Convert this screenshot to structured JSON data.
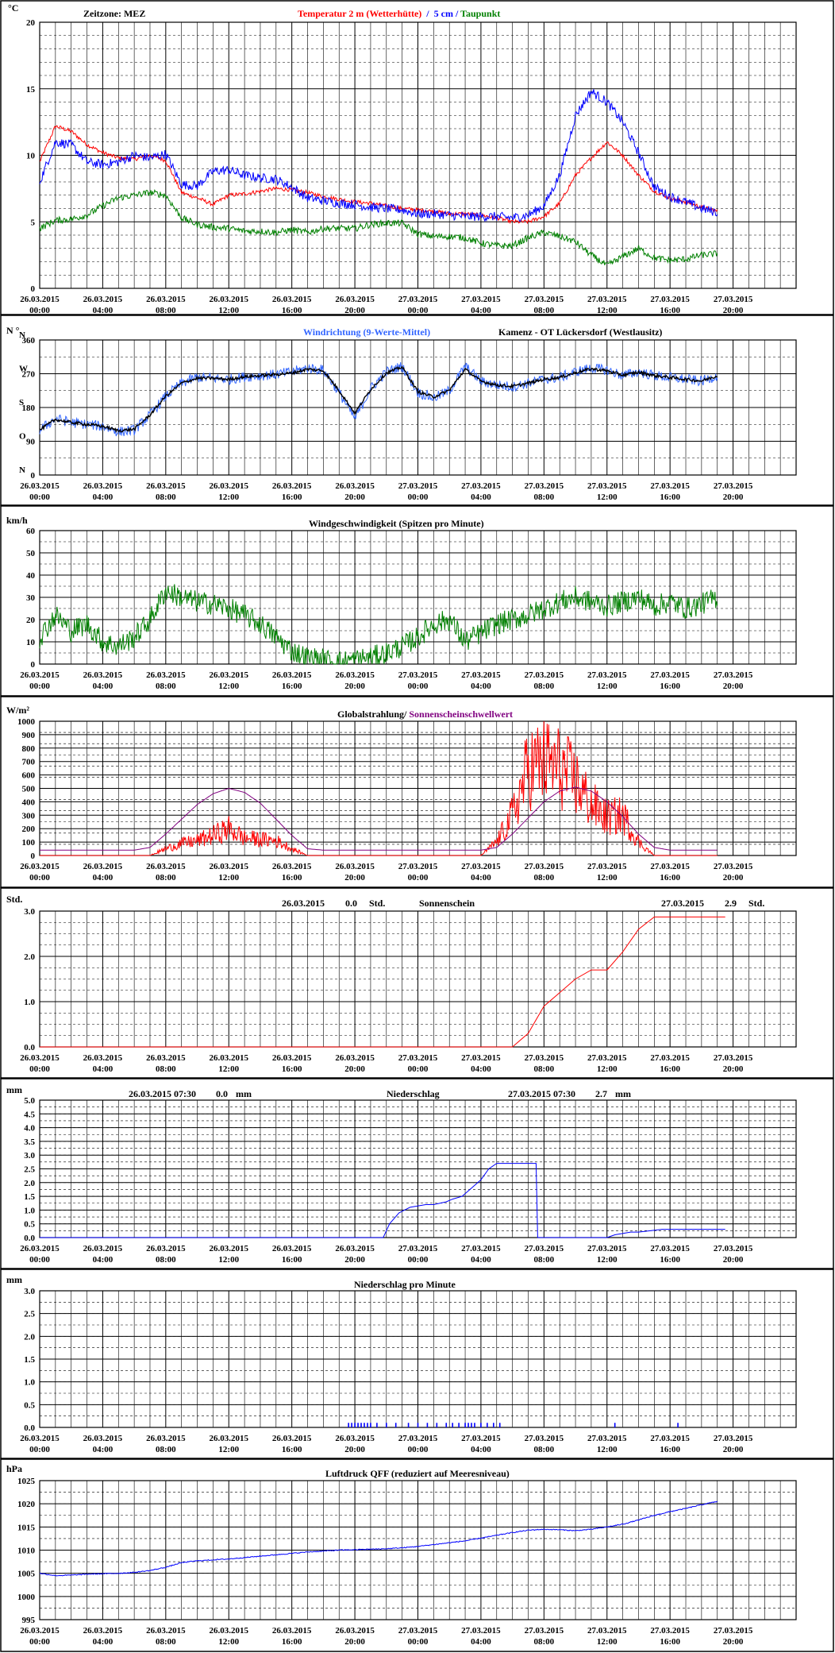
{
  "x_labels": [
    [
      "26.03.2015",
      "00:00"
    ],
    [
      "26.03.2015",
      "04:00"
    ],
    [
      "26.03.2015",
      "08:00"
    ],
    [
      "26.03.2015",
      "12:00"
    ],
    [
      "26.03.2015",
      "16:00"
    ],
    [
      "26.03.2015",
      "20:00"
    ],
    [
      "27.03.2015",
      "00:00"
    ],
    [
      "27.03.2015",
      "04:00"
    ],
    [
      "27.03.2015",
      "08:00"
    ],
    [
      "27.03.2015",
      "12:00"
    ],
    [
      "27.03.2015",
      "16:00"
    ],
    [
      "27.03.2015",
      "20:00"
    ]
  ],
  "colors": {
    "red": "#ff0000",
    "blue": "#0000ff",
    "lightblue": "#3366ff",
    "green": "#008000",
    "purple": "#800080",
    "black": "#000000",
    "navy": "#000080"
  },
  "chart_data": [
    {
      "id": "temperature",
      "type": "line",
      "unit": "°C",
      "timezone_label": "Zeitzone: MEZ",
      "title_parts": [
        {
          "text": "Temperatur 2 m (Wetterhütte)",
          "color": "#ff0000"
        },
        {
          "text": "  /  ",
          "color": "#0000ff"
        },
        {
          "text": "5 cm",
          "color": "#0000ff"
        },
        {
          "text": " / ",
          "color": "#0000ff"
        },
        {
          "text": "Taupunkt",
          "color": "#008000"
        }
      ],
      "ylim": [
        0,
        20
      ],
      "yticks": [
        0,
        5,
        10,
        15,
        20
      ],
      "ytick_labels": [
        "0",
        "5",
        "10",
        "15",
        "20"
      ],
      "x_hours": [
        0,
        1,
        2,
        3,
        4,
        5,
        6,
        7,
        8,
        9,
        10,
        11,
        12,
        13,
        14,
        15,
        16,
        17,
        18,
        19,
        20,
        21,
        22,
        23,
        24,
        25,
        26,
        27,
        28,
        29,
        30,
        31,
        32,
        33,
        34,
        35,
        36,
        37,
        38,
        39,
        40,
        41,
        42,
        43
      ],
      "series": [
        {
          "name": "Temperatur 2 m (Wetterhütte)",
          "color": "#ff0000",
          "noise": 0.15,
          "values": [
            9.5,
            12.2,
            11.8,
            10.8,
            10.2,
            9.8,
            9.7,
            10,
            9.6,
            7.2,
            6.8,
            6.3,
            7.0,
            7.1,
            7.3,
            7.5,
            7.4,
            7.2,
            6.9,
            6.7,
            6.5,
            6.4,
            6.2,
            6.0,
            5.9,
            5.8,
            5.6,
            5.6,
            5.5,
            5.3,
            5.0,
            5.0,
            5.4,
            6.4,
            8.5,
            9.8,
            11.0,
            10.0,
            8.5,
            7.3,
            6.8,
            6.5,
            6.1,
            5.8
          ]
        },
        {
          "name": "5 cm",
          "color": "#0000ff",
          "noise": 0.35,
          "values": [
            8.0,
            11.0,
            10.8,
            9.5,
            9.3,
            9.5,
            10,
            9.8,
            10.1,
            7.8,
            7.7,
            8.8,
            8.9,
            8.5,
            8.3,
            8.2,
            7.6,
            6.8,
            6.6,
            6.4,
            6.3,
            6.1,
            6.0,
            5.9,
            5.6,
            5.6,
            5.5,
            5.4,
            5.4,
            5.4,
            5.3,
            5.5,
            6.2,
            8.5,
            13.0,
            14.8,
            14.0,
            12.5,
            10.2,
            7.6,
            6.9,
            6.5,
            6.0,
            5.7
          ]
        },
        {
          "name": "Taupunkt",
          "color": "#008000",
          "noise": 0.25,
          "values": [
            4.5,
            5.1,
            5.2,
            5.5,
            6.2,
            6.8,
            7.0,
            7.2,
            7.0,
            5.3,
            4.8,
            4.6,
            4.5,
            4.3,
            4.3,
            4.2,
            4.4,
            4.2,
            4.5,
            4.5,
            4.5,
            4.8,
            4.9,
            4.9,
            4.1,
            3.9,
            3.9,
            3.8,
            3.4,
            3.2,
            3.2,
            3.8,
            4.2,
            3.9,
            3.5,
            2.5,
            1.7,
            2.4,
            3.0,
            2.3,
            2.1,
            2.2,
            2.5,
            2.6
          ]
        }
      ]
    },
    {
      "id": "wind_direction",
      "type": "line",
      "unit": "N",
      "unit_suffix": "°",
      "title": "Windrichtung (9-Werte-Mittel)",
      "title_color": "#3366ff",
      "station": "Kamenz - OT Lückersdorf (Westlausitz)",
      "ylim": [
        0,
        360
      ],
      "yticks": [
        0,
        90,
        180,
        270,
        360
      ],
      "ytick_labels": [
        "0",
        "90",
        "180",
        "270",
        "360"
      ],
      "compass_labels": [
        {
          "text": "N",
          "value": 360
        },
        {
          "text": "W",
          "value": 270
        },
        {
          "text": "S",
          "value": 180
        },
        {
          "text": "O",
          "value": 90
        },
        {
          "text": "N",
          "value": 0
        }
      ],
      "x_hours": [
        0,
        1,
        2,
        3,
        4,
        5,
        6,
        7,
        8,
        9,
        10,
        11,
        12,
        13,
        14,
        15,
        16,
        17,
        18,
        19,
        20,
        21,
        22,
        23,
        24,
        25,
        26,
        27,
        28,
        29,
        30,
        31,
        32,
        33,
        34,
        35,
        36,
        37,
        38,
        39,
        40,
        41,
        42,
        43
      ],
      "series": [
        {
          "name": "Windrichtung",
          "color": "#3366ff",
          "noise": 14,
          "values": [
            120,
            150,
            140,
            135,
            130,
            115,
            120,
            160,
            210,
            245,
            260,
            258,
            255,
            262,
            265,
            268,
            275,
            285,
            280,
            220,
            150,
            230,
            275,
            290,
            220,
            205,
            225,
            290,
            250,
            240,
            235,
            245,
            255,
            260,
            275,
            285,
            280,
            265,
            275,
            265,
            260,
            255,
            250,
            265
          ]
        },
        {
          "name": "9-Werte-Mittel",
          "color": "#000000",
          "noise": 4,
          "values": [
            120,
            148,
            140,
            135,
            130,
            118,
            122,
            160,
            210,
            245,
            258,
            258,
            255,
            262,
            265,
            268,
            272,
            282,
            278,
            225,
            165,
            228,
            272,
            288,
            222,
            208,
            226,
            282,
            250,
            240,
            236,
            245,
            255,
            260,
            273,
            283,
            278,
            266,
            274,
            265,
            260,
            255,
            251,
            264
          ]
        }
      ]
    },
    {
      "id": "wind_speed",
      "type": "line",
      "unit": "km/h",
      "title": "Windgeschwindigkeit (Spitzen pro Minute)",
      "ylim": [
        0,
        60
      ],
      "yticks": [
        0,
        10,
        20,
        30,
        40,
        50,
        60
      ],
      "ytick_labels": [
        "0",
        "10",
        "20",
        "30",
        "40",
        "50",
        "60"
      ],
      "x_hours": [
        0,
        1,
        2,
        3,
        4,
        5,
        6,
        7,
        8,
        9,
        10,
        11,
        12,
        13,
        14,
        15,
        16,
        17,
        18,
        19,
        20,
        21,
        22,
        23,
        24,
        25,
        26,
        27,
        28,
        29,
        30,
        31,
        32,
        33,
        34,
        35,
        36,
        37,
        38,
        39,
        40,
        41,
        42,
        43
      ],
      "series": [
        {
          "name": "Windgeschwindigkeit",
          "color": "#008000",
          "noise": 5,
          "values": [
            12,
            22,
            15,
            18,
            10,
            8,
            12,
            20,
            33,
            30,
            28,
            27,
            25,
            22,
            18,
            12,
            6,
            3,
            2,
            1,
            2,
            3,
            5,
            8,
            12,
            18,
            20,
            10,
            14,
            18,
            20,
            22,
            25,
            28,
            30,
            28,
            26,
            28,
            30,
            26,
            28,
            25,
            27,
            30
          ]
        }
      ]
    },
    {
      "id": "global_radiation",
      "type": "line",
      "unit": "W/m²",
      "title_parts": [
        {
          "text": "Globalstrahlung/ ",
          "color": "#000000"
        },
        {
          "text": "Sonnenscheinschwellwert",
          "color": "#800080"
        }
      ],
      "ylim": [
        0,
        1000
      ],
      "yticks": [
        0,
        100,
        200,
        300,
        400,
        500,
        600,
        700,
        800,
        900,
        1000
      ],
      "ytick_labels": [
        "0",
        "100",
        "200",
        "300",
        "400",
        "500",
        "600",
        "700",
        "800",
        "900",
        "1000"
      ],
      "x_hours": [
        0,
        1,
        2,
        3,
        4,
        5,
        6,
        7,
        8,
        9,
        10,
        11,
        12,
        13,
        14,
        15,
        16,
        17,
        18,
        19,
        20,
        21,
        22,
        23,
        24,
        25,
        26,
        27,
        28,
        29,
        30,
        31,
        32,
        33,
        34,
        35,
        36,
        37,
        38,
        39,
        40,
        41,
        42,
        43
      ],
      "series": [
        {
          "name": "Globalstrahlung",
          "color": "#ff0000",
          "noise": 0.5,
          "values": [
            0,
            0,
            0,
            0,
            0,
            0,
            0,
            0,
            50,
            90,
            110,
            150,
            200,
            130,
            120,
            110,
            50,
            0,
            0,
            0,
            0,
            0,
            0,
            0,
            0,
            0,
            0,
            0,
            0,
            100,
            300,
            650,
            700,
            650,
            550,
            380,
            280,
            300,
            100,
            0,
            0,
            0,
            0,
            0
          ]
        },
        {
          "name": "Sonnenscheinschwellwert",
          "color": "#800080",
          "noise": 0,
          "values": [
            40,
            40,
            40,
            40,
            40,
            40,
            40,
            60,
            160,
            270,
            380,
            460,
            500,
            470,
            390,
            270,
            150,
            50,
            40,
            40,
            40,
            40,
            40,
            40,
            40,
            40,
            40,
            40,
            40,
            60,
            160,
            280,
            400,
            480,
            510,
            480,
            400,
            290,
            160,
            60,
            40,
            40,
            40,
            40
          ]
        }
      ]
    },
    {
      "id": "sunshine",
      "type": "line",
      "unit": "Std.",
      "title": "Sonnenschein",
      "day_totals": [
        {
          "date": "26.03.2015",
          "value": "0.0",
          "unit": "Std."
        },
        {
          "date": "27.03.2015",
          "value": "2.9",
          "unit": "Std."
        }
      ],
      "ylim": [
        0,
        3
      ],
      "yticks": [
        0,
        1,
        2,
        3
      ],
      "ytick_labels": [
        "0.0",
        "1.0",
        "2.0",
        "3.0"
      ],
      "x_hours": [
        0,
        24,
        30,
        31,
        32,
        33,
        34,
        35,
        36,
        37,
        38,
        39,
        43.5
      ],
      "series": [
        {
          "name": "Sonnenschein",
          "color": "#ff0000",
          "noise": 0,
          "values": [
            0,
            0,
            0,
            0.3,
            0.9,
            1.2,
            1.5,
            1.7,
            1.7,
            2.1,
            2.6,
            2.87,
            2.87
          ]
        }
      ]
    },
    {
      "id": "precipitation",
      "type": "line",
      "unit": "mm",
      "title": "Niederschlag",
      "day_totals": [
        {
          "date": "26.03.2015 07:30",
          "value": "0.0",
          "unit": "mm"
        },
        {
          "date": "27.03.2015 07:30",
          "value": "2.7",
          "unit": "mm"
        }
      ],
      "ylim": [
        0,
        5
      ],
      "yticks": [
        0,
        0.5,
        1,
        1.5,
        2,
        2.5,
        3,
        3.5,
        4,
        4.5,
        5
      ],
      "ytick_labels": [
        "0.0",
        "0.5",
        "1.0",
        "1.5",
        "2.0",
        "2.5",
        "3.0",
        "3.5",
        "4.0",
        "4.5",
        "5.0"
      ],
      "x_hours": [
        0,
        20,
        21.8,
        22.2,
        22.8,
        23.5,
        24.5,
        25,
        25.8,
        26.2,
        26.8,
        27.2,
        27.6,
        28,
        28.5,
        29,
        29.5,
        31.5,
        31.6,
        36,
        36.5,
        37.5,
        38,
        39.5,
        43.5
      ],
      "series": [
        {
          "name": "Niederschlag",
          "color": "#0000ff",
          "noise": 0,
          "values": [
            0,
            0,
            0,
            0.5,
            0.9,
            1.1,
            1.2,
            1.2,
            1.3,
            1.4,
            1.5,
            1.7,
            1.9,
            2.1,
            2.5,
            2.7,
            2.7,
            2.7,
            0,
            0,
            0.1,
            0.2,
            0.2,
            0.3,
            0.3
          ]
        }
      ]
    },
    {
      "id": "precipitation_per_minute",
      "type": "bar",
      "unit": "mm",
      "title": "Niederschlag pro Minute",
      "ylim": [
        0,
        3
      ],
      "yticks": [
        0,
        0.5,
        1,
        1.5,
        2,
        2.5,
        3
      ],
      "ytick_labels": [
        "0.0",
        "0.5",
        "1.0",
        "1.5",
        "2.0",
        "2.5",
        "3.0"
      ],
      "bar_color": "#0000ff",
      "x_hours": [
        19.6,
        19.8,
        20.0,
        20.2,
        20.4,
        20.6,
        20.8,
        21.0,
        21.4,
        22.0,
        22.6,
        23.4,
        24.0,
        24.6,
        25.2,
        25.8,
        26.2,
        26.6,
        27.0,
        27.2,
        27.4,
        27.6,
        28.0,
        28.4,
        28.8,
        29.2,
        36.5,
        40.5
      ],
      "values": [
        0.1,
        0.1,
        0.1,
        0.1,
        0.1,
        0.1,
        0.1,
        0.1,
        0.1,
        0.1,
        0.1,
        0.1,
        0.1,
        0.1,
        0.1,
        0.1,
        0.1,
        0.1,
        0.1,
        0.1,
        0.1,
        0.1,
        0.1,
        0.1,
        0.1,
        0.1,
        0.1,
        0.1
      ]
    },
    {
      "id": "pressure",
      "type": "line",
      "unit": "hPa",
      "title": "Luftdruck QFF (reduziert auf Meeresniveau)",
      "ylim": [
        995,
        1025
      ],
      "yticks": [
        995,
        1000,
        1005,
        1010,
        1015,
        1020,
        1025
      ],
      "ytick_labels": [
        "995",
        "1000",
        "1005",
        "1010",
        "1015",
        "1020",
        "1025"
      ],
      "x_hours": [
        0,
        1,
        2,
        3,
        4,
        5,
        6,
        7,
        8,
        9,
        10,
        11,
        12,
        13,
        14,
        15,
        16,
        17,
        18,
        19,
        20,
        21,
        22,
        23,
        24,
        25,
        26,
        27,
        28,
        29,
        30,
        31,
        32,
        33,
        34,
        35,
        36,
        37,
        38,
        39,
        40,
        41,
        42,
        43
      ],
      "series": [
        {
          "name": "Luftdruck",
          "color": "#0000ff",
          "noise": 0.1,
          "values": [
            1005,
            1004.5,
            1004.6,
            1004.8,
            1004.9,
            1005,
            1005.2,
            1005.6,
            1006.3,
            1007.3,
            1007.7,
            1007.9,
            1008.1,
            1008.4,
            1008.7,
            1009,
            1009.3,
            1009.6,
            1009.8,
            1010,
            1010.1,
            1010.2,
            1010.3,
            1010.5,
            1010.8,
            1011.2,
            1011.6,
            1012,
            1012.6,
            1013.2,
            1013.8,
            1014.3,
            1014.5,
            1014.4,
            1014.2,
            1014.5,
            1015,
            1015.6,
            1016.5,
            1017.5,
            1018.3,
            1019,
            1019.8,
            1020.5
          ]
        }
      ]
    }
  ]
}
